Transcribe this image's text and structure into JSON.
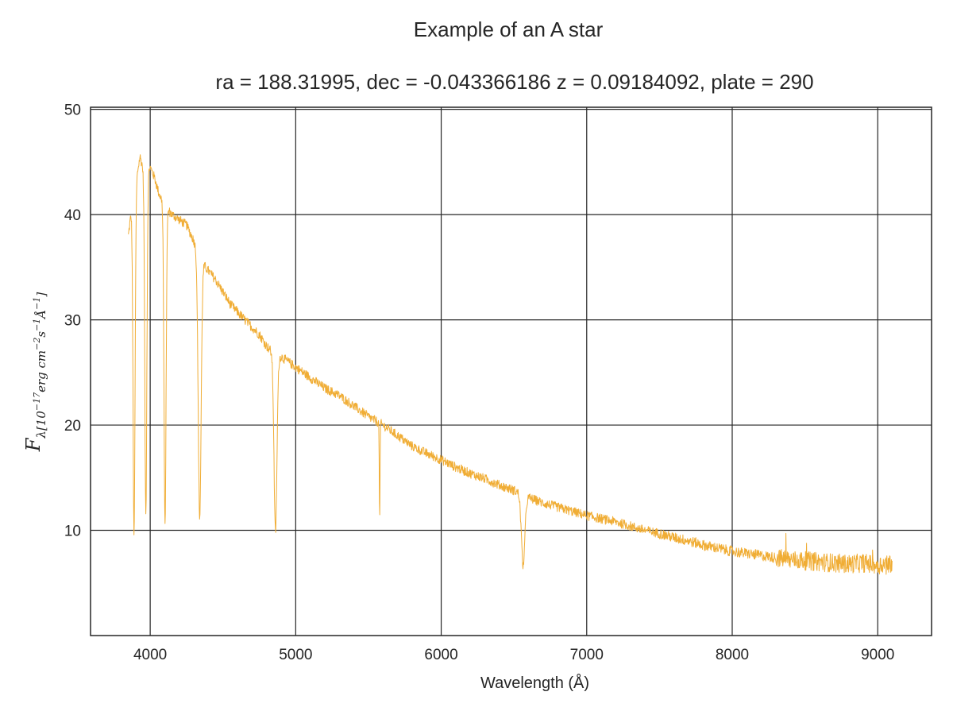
{
  "chart_data": {
    "type": "line",
    "title": "Example of an A star",
    "subtitle": "ra = 188.31995, dec = -0.043366186 z = 0.09184092, plate = 290",
    "xlabel": "Wavelength (Å)",
    "ylabel": {
      "symbol": "F",
      "subscript_prefix": "λ[10",
      "exp1": "−17",
      "unit1": "erg cm",
      "exp2": "−2",
      "unit2": "s",
      "exp3": "−1",
      "unit3": "Å",
      "exp4": "−1",
      "close": "]"
    },
    "xlim": [
      3590,
      9370
    ],
    "ylim": [
      0,
      50.2
    ],
    "xticks": [
      4000,
      5000,
      6000,
      7000,
      8000,
      9000
    ],
    "yticks": [
      10,
      20,
      30,
      40,
      50
    ],
    "grid": true,
    "series": [
      {
        "color": "#f0ad35",
        "continuum": [
          [
            3850,
            38.0
          ],
          [
            3880,
            41.5
          ],
          [
            3900,
            43.0
          ],
          [
            3930,
            45.5
          ],
          [
            3950,
            44.5
          ],
          [
            3980,
            44.0
          ],
          [
            4000,
            44.5
          ],
          [
            4030,
            43.5
          ],
          [
            4060,
            42.0
          ],
          [
            4100,
            40.8
          ],
          [
            4150,
            40.0
          ],
          [
            4200,
            39.5
          ],
          [
            4250,
            39.0
          ],
          [
            4300,
            37.5
          ],
          [
            4340,
            36.0
          ],
          [
            4380,
            35.0
          ],
          [
            4450,
            33.8
          ],
          [
            4550,
            31.5
          ],
          [
            4650,
            30.0
          ],
          [
            4750,
            28.6
          ],
          [
            4800,
            27.5
          ],
          [
            4861,
            26.6
          ],
          [
            4900,
            26.5
          ],
          [
            5000,
            25.5
          ],
          [
            5100,
            24.5
          ],
          [
            5200,
            23.5
          ],
          [
            5300,
            22.8
          ],
          [
            5400,
            21.8
          ],
          [
            5500,
            20.8
          ],
          [
            5600,
            20.0
          ],
          [
            5700,
            19.0
          ],
          [
            5800,
            18.0
          ],
          [
            5900,
            17.3
          ],
          [
            6000,
            16.7
          ],
          [
            6100,
            16.0
          ],
          [
            6200,
            15.4
          ],
          [
            6300,
            14.9
          ],
          [
            6400,
            14.3
          ],
          [
            6500,
            13.8
          ],
          [
            6600,
            13.1
          ],
          [
            6700,
            12.6
          ],
          [
            6800,
            12.2
          ],
          [
            6900,
            11.8
          ],
          [
            7000,
            11.4
          ],
          [
            7100,
            11.1
          ],
          [
            7200,
            10.8
          ],
          [
            7300,
            10.4
          ],
          [
            7400,
            10.0
          ],
          [
            7500,
            9.7
          ],
          [
            7600,
            9.3
          ],
          [
            7700,
            9.0
          ],
          [
            7800,
            8.6
          ],
          [
            7900,
            8.3
          ],
          [
            8000,
            8.0
          ],
          [
            8100,
            7.8
          ],
          [
            8200,
            7.6
          ],
          [
            8300,
            7.4
          ],
          [
            8400,
            7.2
          ],
          [
            8500,
            7.1
          ],
          [
            8600,
            7.0
          ],
          [
            8700,
            6.9
          ],
          [
            8800,
            6.8
          ],
          [
            8900,
            6.9
          ],
          [
            9000,
            6.7
          ],
          [
            9100,
            6.9
          ]
        ],
        "absorption_lines": [
          [
            3889,
            9.8
          ],
          [
            3970,
            11.5
          ],
          [
            4102,
            10.3
          ],
          [
            4340,
            11.2
          ],
          [
            4861,
            9.8
          ],
          [
            6563,
            6.7
          ],
          [
            5577,
            10.8
          ]
        ],
        "x_range": [
          3850,
          9100
        ]
      }
    ]
  }
}
